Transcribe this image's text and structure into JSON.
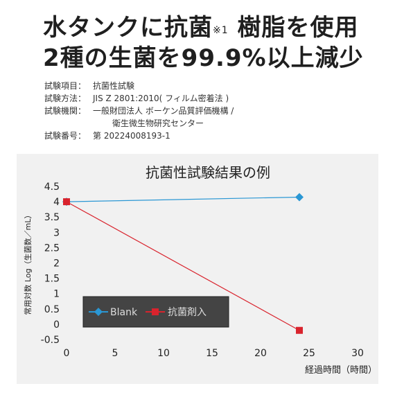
{
  "headline": {
    "line1": "水タンクに抗菌",
    "note_mark": "※1",
    "line1_rest": " 樹脂を使用",
    "line2": "2種の生菌を99.9%以上減少"
  },
  "test_info": [
    {
      "key": "試験項目：",
      "value": "抗菌性試験"
    },
    {
      "key": "試験方法：",
      "value": "JIS Z 2801:2010( フィルム密着法 )"
    },
    {
      "key": "試験機関：",
      "value": "一般財団法人 ボーケン品質評価機構 /"
    },
    {
      "key": "",
      "value": "衛生微生物研究センター"
    },
    {
      "key": "試験番号：",
      "value": "第 20224008193-1"
    }
  ],
  "chart_data": {
    "type": "line",
    "title": "抗菌性試験結果の例",
    "xlabel": "経過時間（時間）",
    "ylabel": "常用対数 Log（生菌数／mL）",
    "xlim": [
      0,
      30
    ],
    "ylim": [
      -0.5,
      4.5
    ],
    "xticks": [
      "0",
      "5",
      "10",
      "15",
      "20",
      "25",
      "30"
    ],
    "yticks": [
      "4.5",
      "4",
      "3.5",
      "3",
      "2.5",
      "2",
      "1.5",
      "1",
      "0.5",
      "0",
      "-0.5"
    ],
    "grid": false,
    "legend_position": "bottom-left",
    "series": [
      {
        "name": "Blank",
        "x": [
          0,
          24
        ],
        "y": [
          4.0,
          4.15
        ],
        "color": "#2a97d4",
        "marker": "diamond"
      },
      {
        "name": "抗菌剤入",
        "x": [
          0,
          24
        ],
        "y": [
          4.0,
          -0.2
        ],
        "color": "#d9232d",
        "marker": "square"
      }
    ]
  }
}
